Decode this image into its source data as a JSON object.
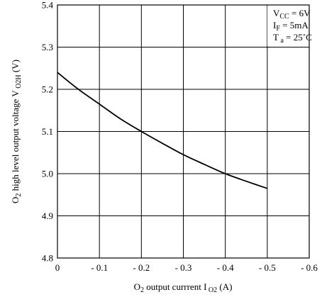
{
  "chart_data": {
    "type": "line",
    "xlabel": {
      "main": "O",
      "sub1": "2",
      "mid": " output currrent I",
      "sub2": " O2",
      "end": " (A)"
    },
    "ylabel": {
      "main": "O",
      "sub1": "2",
      "mid": " high level output voltage V",
      "sub2": " O2H",
      "end": " (V)"
    },
    "xlim": [
      0,
      -0.6
    ],
    "ylim": [
      4.8,
      5.4
    ],
    "x_ticks": [
      0,
      -0.1,
      -0.2,
      -0.3,
      -0.4,
      -0.5,
      -0.6
    ],
    "x_tick_labels": [
      "0",
      "- 0.1",
      "- 0.2",
      "- 0.3",
      "- 0.4",
      "- 0.5",
      "- 0.6"
    ],
    "y_ticks": [
      4.8,
      4.9,
      5.0,
      5.1,
      5.2,
      5.3,
      5.4
    ],
    "y_tick_labels": [
      "4.8",
      "4.9",
      "5.0",
      "5.1",
      "5.2",
      "5.3",
      "5.4"
    ],
    "grid": true,
    "conditions": [
      {
        "main": "V",
        "sub": "CC",
        "rest": " = 6V"
      },
      {
        "main": "I",
        "sub": "F",
        "rest": " = 5mA"
      },
      {
        "main": "T",
        "sub": " a",
        "rest": " = 25˚C"
      }
    ],
    "series": [
      {
        "color": "#000000",
        "points": [
          {
            "x": 0,
            "y": 5.24
          },
          {
            "x": -0.05,
            "y": 5.2
          },
          {
            "x": -0.1,
            "y": 5.165
          },
          {
            "x": -0.15,
            "y": 5.13
          },
          {
            "x": -0.2,
            "y": 5.1
          },
          {
            "x": -0.25,
            "y": 5.072
          },
          {
            "x": -0.3,
            "y": 5.045
          },
          {
            "x": -0.35,
            "y": 5.022
          },
          {
            "x": -0.4,
            "y": 5.0
          },
          {
            "x": -0.45,
            "y": 4.982
          },
          {
            "x": -0.5,
            "y": 4.965
          }
        ]
      }
    ]
  }
}
